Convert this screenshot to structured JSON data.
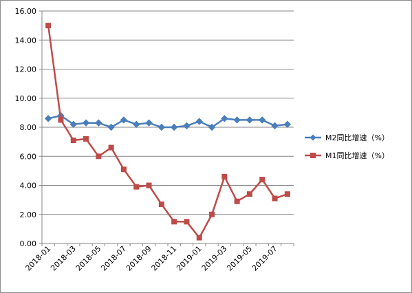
{
  "chart_data": {
    "type": "line",
    "title": "",
    "xlabel": "",
    "ylabel": "",
    "x": [
      "2018-01",
      "2018-02",
      "2018-03",
      "2018-04",
      "2018-05",
      "2018-06",
      "2018-07",
      "2018-08",
      "2018-09",
      "2018-10",
      "2018-11",
      "2018-12",
      "2019-01",
      "2019-02",
      "2019-03",
      "2019-04",
      "2019-05",
      "2019-06",
      "2019-07",
      "2019-08"
    ],
    "x_tick_labels": [
      "2018-01",
      "2018-03",
      "2018-05",
      "2018-07",
      "2018-09",
      "2018-11",
      "2019-01",
      "2019-03",
      "2019-05",
      "2019-07"
    ],
    "ylim": [
      0,
      16
    ],
    "y_ticks": [
      "0.00",
      "2.00",
      "4.00",
      "6.00",
      "8.00",
      "10.00",
      "12.00",
      "14.00",
      "16.00"
    ],
    "grid": true,
    "legend_position": "right",
    "series": [
      {
        "name": "M2同比增速（%）",
        "color": "#4a7ebb",
        "marker": "diamond",
        "values": [
          8.6,
          8.8,
          8.2,
          8.3,
          8.3,
          8.0,
          8.5,
          8.2,
          8.3,
          8.0,
          8.0,
          8.1,
          8.4,
          8.0,
          8.6,
          8.5,
          8.5,
          8.5,
          8.1,
          8.2
        ]
      },
      {
        "name": "M1同比增速（%）",
        "color": "#be4b48",
        "marker": "square",
        "values": [
          15.0,
          8.5,
          7.1,
          7.2,
          6.0,
          6.6,
          5.1,
          3.9,
          4.0,
          2.7,
          1.5,
          1.5,
          0.4,
          2.0,
          4.6,
          2.9,
          3.4,
          4.4,
          3.1,
          3.4
        ]
      }
    ]
  }
}
